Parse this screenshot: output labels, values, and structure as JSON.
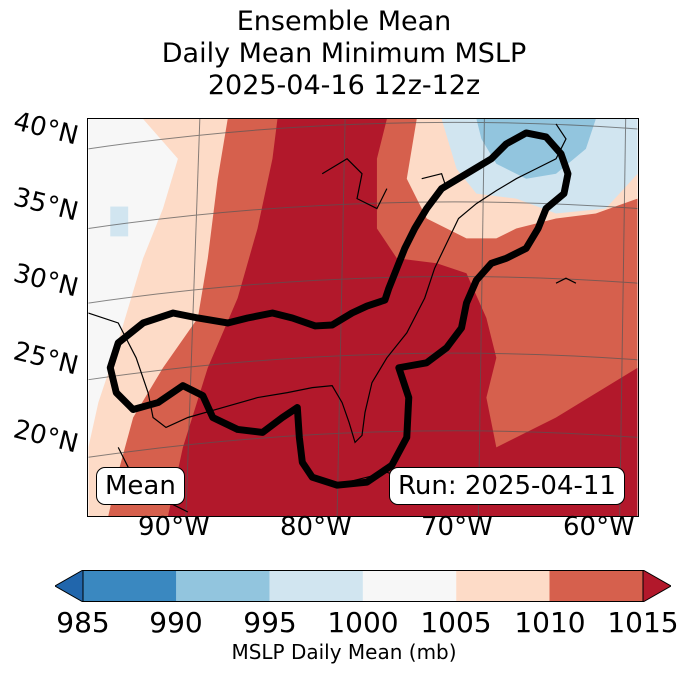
{
  "title": {
    "line1": "Ensemble Mean",
    "line2": "Daily Mean Minimum MSLP",
    "line3": "2025-04-16 12z-12z"
  },
  "annotations": {
    "left_box": "Mean",
    "right_box": "Run: 2025-04-11"
  },
  "colors": {
    "bin_985_990": "#3a88c0",
    "bin_990_995": "#92c5de",
    "bin_995_1000": "#d1e5f0",
    "bin_1000_1005": "#f7f7f7",
    "bin_1005_1010": "#fddbc7",
    "bin_1010_1015": "#d6604d",
    "bin_above_1015": "#b2182b",
    "bin_below_985": "#2166ac",
    "contour": "#000000"
  },
  "chart_data": {
    "type": "heatmap",
    "title": "Ensemble Mean Daily Mean Minimum MSLP 2025-04-16 12z-12z",
    "lat_labels": [
      "40°N",
      "35°N",
      "30°N",
      "25°N",
      "20°N"
    ],
    "lon_labels": [
      "90°W",
      "80°W",
      "70°W",
      "60°W"
    ],
    "colorbar": {
      "label": "MSLP Daily Mean (mb)",
      "levels": [
        985,
        990,
        995,
        1000,
        1005,
        1010,
        1015
      ],
      "tick_labels": [
        "985",
        "990",
        "995",
        "1000",
        "1005",
        "1010",
        "1015"
      ],
      "extend": "both"
    },
    "units": "mb",
    "region": "Southeastern United States, Gulf of Mexico and Western Atlantic"
  }
}
